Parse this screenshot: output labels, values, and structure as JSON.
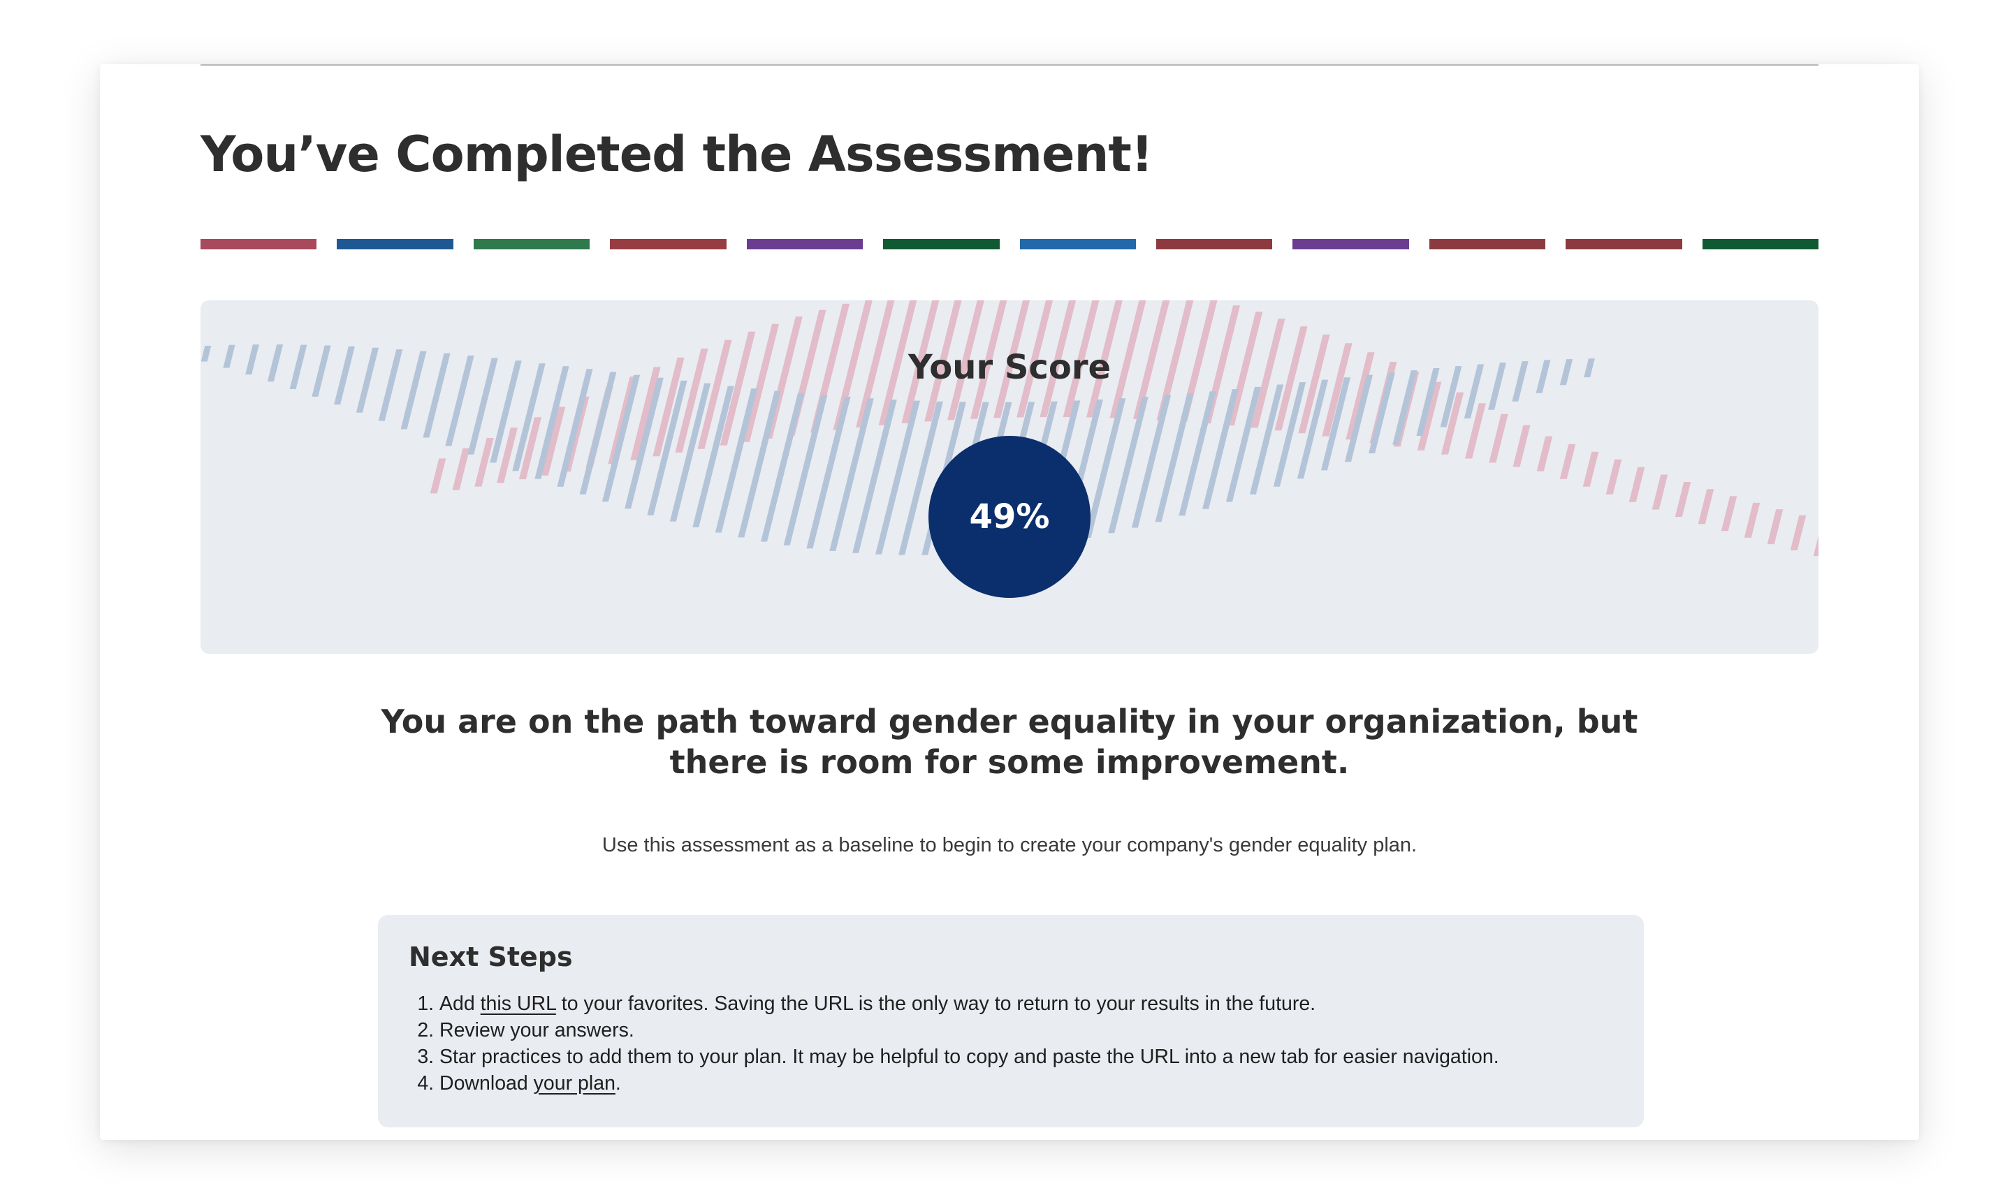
{
  "page": {
    "title": "You’ve Completed the Assessment!"
  },
  "progress": {
    "segments": [
      {
        "color": "#a84a5c",
        "state": "complete"
      },
      {
        "color": "#1d5893",
        "state": "complete"
      },
      {
        "color": "#2e7a4d",
        "state": "complete"
      },
      {
        "color": "#983c44",
        "state": "complete"
      },
      {
        "color": "#6b3d91",
        "state": "complete"
      },
      {
        "color": "#0f5a32",
        "state": "complete"
      },
      {
        "color": "#2368a8",
        "state": "complete"
      },
      {
        "color": "#8c3a3f",
        "state": "complete"
      },
      {
        "color": "#6b3d91",
        "state": "complete"
      },
      {
        "color": "#8c3a3f",
        "state": "complete"
      },
      {
        "color": "#8c3a3f",
        "state": "complete"
      },
      {
        "color": "#0f5a32",
        "state": "complete"
      }
    ]
  },
  "score": {
    "label": "Your Score",
    "value": "49%",
    "circle_color": "#0b2f6c",
    "panel_color": "#e9ecf1",
    "wave_colors": {
      "blue": "#b4c4d8",
      "pink": "#e2bcc8"
    }
  },
  "result": {
    "headline": "You are on the path toward gender equality in your organization, but there is room for some improvement.",
    "subtext": "Use this assessment as a baseline to begin to create your company's gender equality plan."
  },
  "next_steps": {
    "heading": "Next Steps",
    "items": [
      {
        "before": "Add ",
        "link": "this URL",
        "after": " to your favorites. Saving the URL is the only way to return to your results in the future."
      },
      {
        "before": "Review your answers.",
        "link": "",
        "after": ""
      },
      {
        "before": "Star practices to add them to your plan. It may be helpful to copy and paste the URL into a new tab for easier navigation.",
        "link": "",
        "after": ""
      },
      {
        "before": "Download ",
        "link": "your plan",
        "after": "."
      }
    ]
  }
}
